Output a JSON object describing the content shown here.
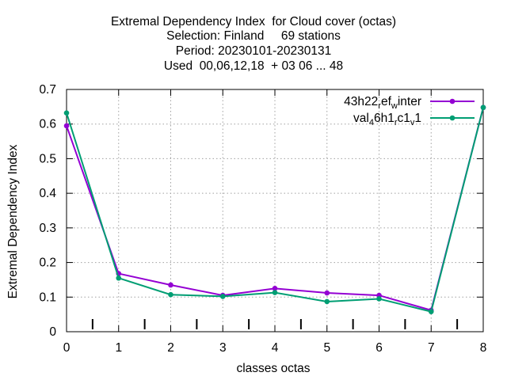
{
  "chart_data": {
    "type": "line",
    "title_lines": [
      "Extremal Dependency Index  for Cloud cover (octas)",
      "Selection: Finland     69 stations",
      "Period: 20230101-20230131",
      "Used  00,06,12,18  + 03 06 ... 48"
    ],
    "xlabel": "classes octas",
    "ylabel": "Extremal Dependency Index",
    "x": [
      0,
      1,
      2,
      3,
      4,
      5,
      6,
      7,
      8
    ],
    "xlim": [
      0,
      8
    ],
    "ylim": [
      0,
      0.7
    ],
    "xticks": [
      "0",
      "1",
      "2",
      "3",
      "4",
      "5",
      "6",
      "7",
      "8"
    ],
    "yticks": [
      "0",
      "0.1",
      "0.2",
      "0.3",
      "0.4",
      "0.5",
      "0.6",
      "0.7"
    ],
    "grid": true,
    "legend_position": "top-right",
    "series": [
      {
        "name": "43h22 ref_w inter",
        "legend_main": "43h22",
        "legend_sub1": "r",
        "legend_mid": "ef",
        "legend_sub2": "w",
        "legend_end": "inter",
        "color": "#9400d3",
        "values": [
          0.595,
          0.168,
          0.135,
          0.105,
          0.125,
          0.112,
          0.105,
          0.062,
          0.648
        ]
      },
      {
        "name": "val_46h1_rc1_v1",
        "legend_main": "val",
        "legend_sub1": "4",
        "legend_mid": "6h1",
        "legend_sub2": "r",
        "legend_mid2": "c1",
        "legend_sub3": "v",
        "legend_end": "1",
        "color": "#009e73",
        "values": [
          0.632,
          0.155,
          0.107,
          0.102,
          0.113,
          0.087,
          0.095,
          0.058,
          0.648
        ]
      }
    ],
    "class_separators": [
      0.5,
      1.5,
      2.5,
      3.5,
      4.5,
      5.5,
      6.5,
      7.5
    ]
  }
}
